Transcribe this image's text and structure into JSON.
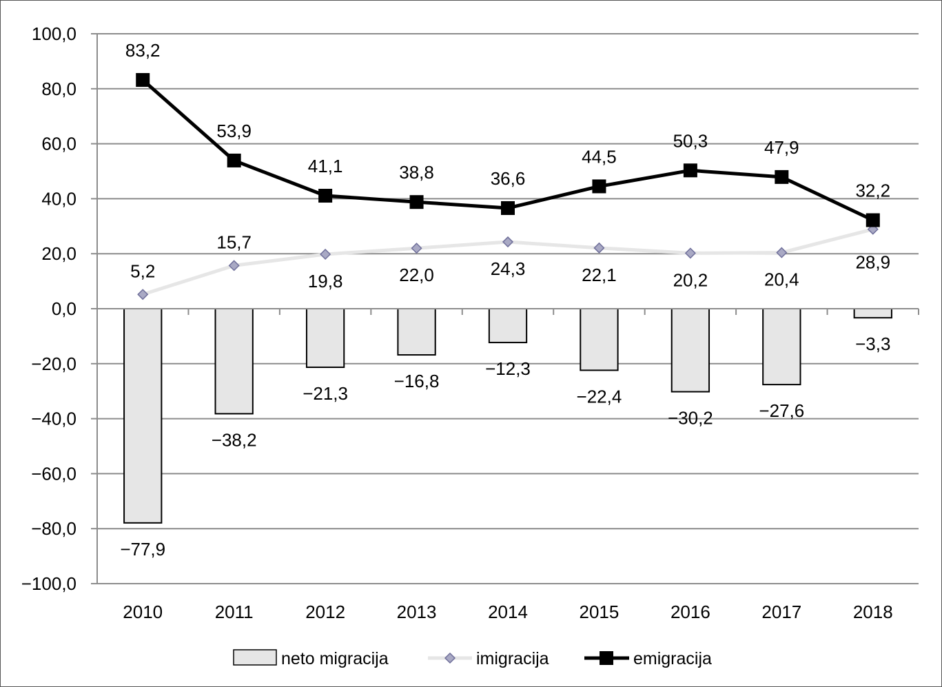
{
  "chart_data": {
    "type": "bar",
    "categories": [
      "2010",
      "2011",
      "2012",
      "2013",
      "2014",
      "2015",
      "2016",
      "2017",
      "2018"
    ],
    "ylim": [
      -100,
      100
    ],
    "ytick_step": 20,
    "ytick_labels": [
      "100,0",
      "80,0",
      "60,0",
      "40,0",
      "20,0",
      "0,0",
      "−20,0",
      "−40,0",
      "−60,0",
      "−80,0",
      "−100,0"
    ],
    "grid": true,
    "legend_position": "bottom",
    "series": [
      {
        "name": "neto migracija",
        "type": "bar",
        "color": "#e6e6e6",
        "values": [
          -77.9,
          -38.2,
          -21.3,
          -16.8,
          -12.3,
          -22.4,
          -30.2,
          -27.6,
          -3.3
        ],
        "labels": [
          "−77,9",
          "−38,2",
          "−21,3",
          "−16,8",
          "−12,3",
          "−22,4",
          "−30,2",
          "−27,6",
          "−3,3"
        ]
      },
      {
        "name": "imigracija",
        "type": "line",
        "color": "#e6e6e6",
        "marker": "diamond",
        "marker_color": "#a9a9c4",
        "values": [
          5.2,
          15.7,
          19.8,
          22.0,
          24.3,
          22.1,
          20.2,
          20.4,
          28.9
        ],
        "labels": [
          "5,2",
          "15,7",
          "19,8",
          "22,0",
          "24,3",
          "22,1",
          "20,2",
          "20,4",
          "28,9"
        ]
      },
      {
        "name": "emigracija",
        "type": "line",
        "color": "#000000",
        "marker": "square",
        "values": [
          83.2,
          53.9,
          41.1,
          38.8,
          36.6,
          44.5,
          50.3,
          47.9,
          32.2
        ],
        "labels": [
          "83,2",
          "53,9",
          "41,1",
          "38,8",
          "36,6",
          "44,5",
          "50,3",
          "47,9",
          "32,2"
        ]
      }
    ]
  }
}
